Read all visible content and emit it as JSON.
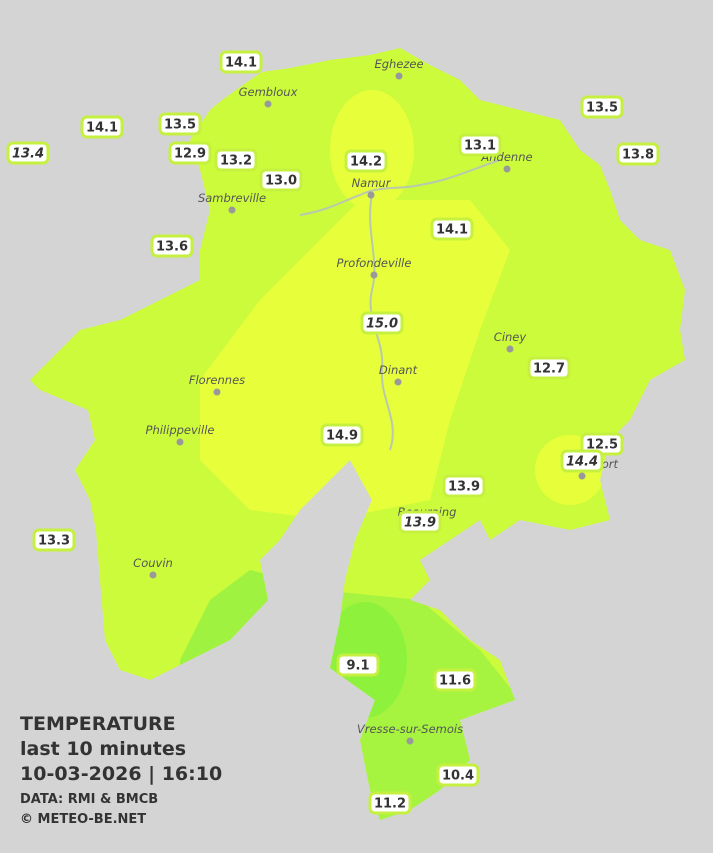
{
  "title": "TEMPERATURE",
  "subtitle": "last 10 minutes",
  "timestamp": "10-03-2026  |  16:10",
  "source": "DATA: RMI & BMCB",
  "copyright": "© METEO-BE.NET",
  "cities": [
    "Eghezee",
    "Gembloux",
    "Andenne",
    "Namur",
    "Sambreville",
    "Profondeville",
    "Ciney",
    "Dinant",
    "Florennes",
    "Philippeville",
    "Rochefort",
    "Beauraing",
    "Couvin",
    "Vresse-sur-Semois"
  ],
  "stations": [
    {
      "value": "14.1"
    },
    {
      "value": "14.1"
    },
    {
      "value": "13.5"
    },
    {
      "value": "13.4",
      "italic": true
    },
    {
      "value": "12.9"
    },
    {
      "value": "13.2"
    },
    {
      "value": "13.0"
    },
    {
      "value": "14.2"
    },
    {
      "value": "13.1"
    },
    {
      "value": "13.5"
    },
    {
      "value": "13.8"
    },
    {
      "value": "14.1"
    },
    {
      "value": "13.6"
    },
    {
      "value": "15.0",
      "italic": true
    },
    {
      "value": "12.7"
    },
    {
      "value": "14.9"
    },
    {
      "value": "12.5"
    },
    {
      "value": "14.4",
      "italic": true
    },
    {
      "value": "13.9"
    },
    {
      "value": "13.9",
      "italic": true
    },
    {
      "value": "13.3"
    },
    {
      "value": "9.1"
    },
    {
      "value": "11.6"
    },
    {
      "value": "10.4"
    },
    {
      "value": "11.2"
    }
  ]
}
